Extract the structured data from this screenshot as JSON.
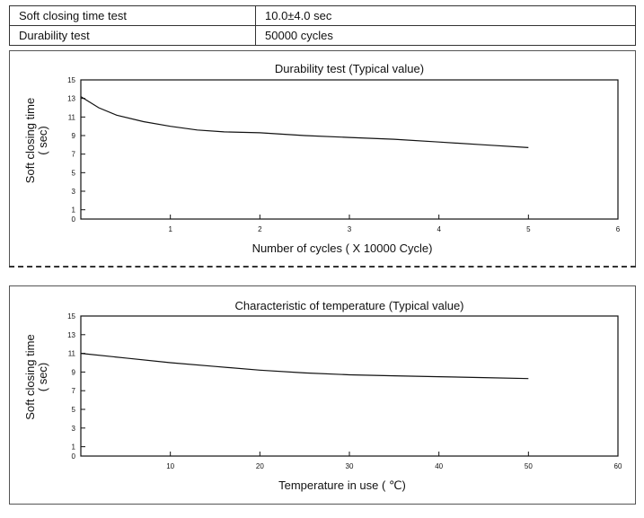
{
  "specs": [
    {
      "label": "Soft closing time test",
      "value": "10.0±4.0 sec"
    },
    {
      "label": "Durability test",
      "value": "50000 cycles"
    }
  ],
  "chart_data": [
    {
      "type": "line",
      "title": "Durability test  (Typical value)",
      "xlabel": "Number of cycles  ( X 10000 Cycle)",
      "ylabel_line1": "Soft closing time",
      "ylabel_line2": "(    sec)",
      "xlim": [
        0,
        6
      ],
      "ylim": [
        0,
        15
      ],
      "xticks": [
        1,
        2,
        3,
        4,
        5,
        6
      ],
      "yticks": [
        0,
        1,
        3,
        5,
        7,
        9,
        11,
        13,
        15
      ],
      "grid": false,
      "series": [
        {
          "x": [
            0,
            0.2,
            0.4,
            0.7,
            1.0,
            1.3,
            1.6,
            2.0,
            2.5,
            3.0,
            3.5,
            4.0,
            4.5,
            5.0
          ],
          "y": [
            13.2,
            12.0,
            11.2,
            10.5,
            10.0,
            9.6,
            9.4,
            9.3,
            9.0,
            8.8,
            8.6,
            8.3,
            8.0,
            7.7
          ]
        }
      ]
    },
    {
      "type": "line",
      "title": "Characteristic of temperature  (Typical value)",
      "xlabel": "Temperature in use  ( ℃)",
      "ylabel_line1": "Soft closing time",
      "ylabel_line2": "(    sec)",
      "xlim": [
        0,
        60
      ],
      "ylim": [
        0,
        15
      ],
      "xticks": [
        10,
        20,
        30,
        40,
        50,
        60
      ],
      "yticks": [
        0,
        1,
        3,
        5,
        7,
        9,
        11,
        13,
        15
      ],
      "grid": false,
      "series": [
        {
          "x": [
            0,
            5,
            10,
            15,
            20,
            25,
            30,
            35,
            40,
            45,
            50
          ],
          "y": [
            11.0,
            10.5,
            10.0,
            9.6,
            9.2,
            8.9,
            8.7,
            8.6,
            8.5,
            8.4,
            8.3
          ]
        }
      ]
    }
  ]
}
